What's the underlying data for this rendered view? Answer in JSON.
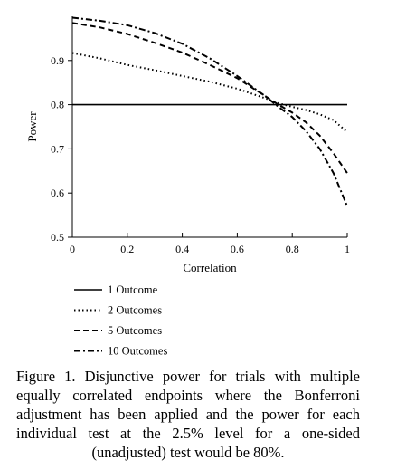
{
  "chart_data": {
    "type": "line",
    "xlabel": "Correlation",
    "ylabel": "Power",
    "xlim": [
      0,
      1
    ],
    "ylim": [
      0.5,
      1.0
    ],
    "xticks": [
      0,
      0.2,
      0.4,
      0.6,
      0.8,
      1
    ],
    "xtick_labels": [
      "0",
      "0.2",
      "0.4",
      "0.6",
      "0.8",
      "1"
    ],
    "yticks": [
      0.5,
      0.6,
      0.7,
      0.8,
      0.9
    ],
    "ytick_labels": [
      "0.5",
      "0.6",
      "0.7",
      "0.8",
      "0.9"
    ],
    "grid": false,
    "legend_position": "bottom",
    "series": [
      {
        "name": "1 Outcome",
        "style": "solid",
        "x": [
          0,
          0.1,
          0.2,
          0.3,
          0.4,
          0.5,
          0.6,
          0.7,
          0.8,
          0.9,
          1.0
        ],
        "y": [
          0.8,
          0.8,
          0.8,
          0.8,
          0.8,
          0.8,
          0.8,
          0.8,
          0.8,
          0.8,
          0.8
        ]
      },
      {
        "name": "2 Outcomes",
        "style": "dotted",
        "x": [
          0,
          0.1,
          0.2,
          0.3,
          0.4,
          0.5,
          0.6,
          0.7,
          0.75,
          0.8,
          0.85,
          0.9,
          0.95,
          1.0
        ],
        "y": [
          0.917,
          0.905,
          0.89,
          0.878,
          0.865,
          0.852,
          0.836,
          0.815,
          0.803,
          0.795,
          0.788,
          0.778,
          0.765,
          0.738
        ]
      },
      {
        "name": "5 Outcomes",
        "style": "dashed",
        "x": [
          0,
          0.1,
          0.2,
          0.3,
          0.4,
          0.5,
          0.6,
          0.7,
          0.75,
          0.8,
          0.85,
          0.9,
          0.95,
          1.0
        ],
        "y": [
          0.985,
          0.975,
          0.96,
          0.94,
          0.918,
          0.89,
          0.86,
          0.82,
          0.8,
          0.782,
          0.76,
          0.73,
          0.69,
          0.645
        ]
      },
      {
        "name": "10 Outcomes",
        "style": "dash-dot",
        "x": [
          0,
          0.1,
          0.2,
          0.3,
          0.4,
          0.5,
          0.6,
          0.7,
          0.75,
          0.8,
          0.85,
          0.9,
          0.95,
          1.0
        ],
        "y": [
          0.997,
          0.99,
          0.98,
          0.962,
          0.938,
          0.905,
          0.865,
          0.82,
          0.795,
          0.772,
          0.74,
          0.7,
          0.645,
          0.57
        ]
      }
    ]
  },
  "caption": "Figure 1. Disjunctive power for trials with multiple equally correlated endpoints where the Bonferroni adjustment has been applied and the power for each individual test at the 2.5% level for a one-sided (unadjusted) test would be 80%."
}
